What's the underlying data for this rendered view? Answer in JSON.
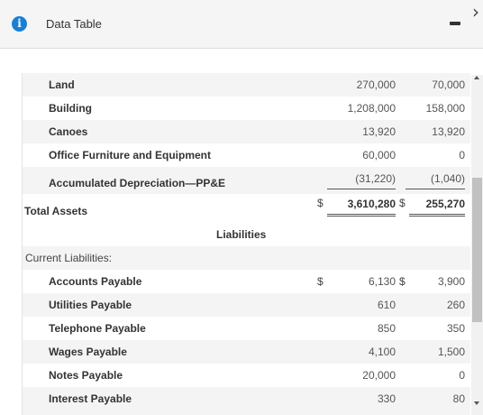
{
  "dialog": {
    "title": "Data Table",
    "info_icon_glyph": "i",
    "close_glyph": "›"
  },
  "asset_rows": [
    {
      "label": "Land",
      "col1": "270,000",
      "col2": "70,000"
    },
    {
      "label": "Building",
      "col1": "1,208,000",
      "col2": "158,000"
    },
    {
      "label": "Canoes",
      "col1": "13,920",
      "col2": "13,920"
    },
    {
      "label": "Office Furniture and Equipment",
      "col1": "60,000",
      "col2": "0"
    },
    {
      "label": "Accumulated Depreciation—PP&E",
      "col1": "(31,220)",
      "col2": "(1,040)"
    }
  ],
  "total_assets": {
    "label": "Total Assets",
    "dollar1": "$",
    "col1": "3,610,280",
    "dollar2": "$",
    "col2": "255,270"
  },
  "liabilities_heading": "Liabilities",
  "current_liabilities_heading": "Current Liabilities:",
  "liability_rows": [
    {
      "label": "Accounts Payable",
      "dollar1": "$",
      "col1": "6,130",
      "dollar2": "$",
      "col2": "3,900"
    },
    {
      "label": "Utilities Payable",
      "col1": "610",
      "col2": "260"
    },
    {
      "label": "Telephone Payable",
      "col1": "850",
      "col2": "350"
    },
    {
      "label": "Wages Payable",
      "col1": "4,100",
      "col2": "1,500"
    },
    {
      "label": "Notes Payable",
      "col1": "20,000",
      "col2": "0"
    },
    {
      "label": "Interest Payable",
      "col1": "330",
      "col2": "80"
    }
  ],
  "colors": {
    "info_icon": "#1a7fd4",
    "row_alt": "#f4f4f4",
    "header_bg": "#f5f5f6"
  }
}
